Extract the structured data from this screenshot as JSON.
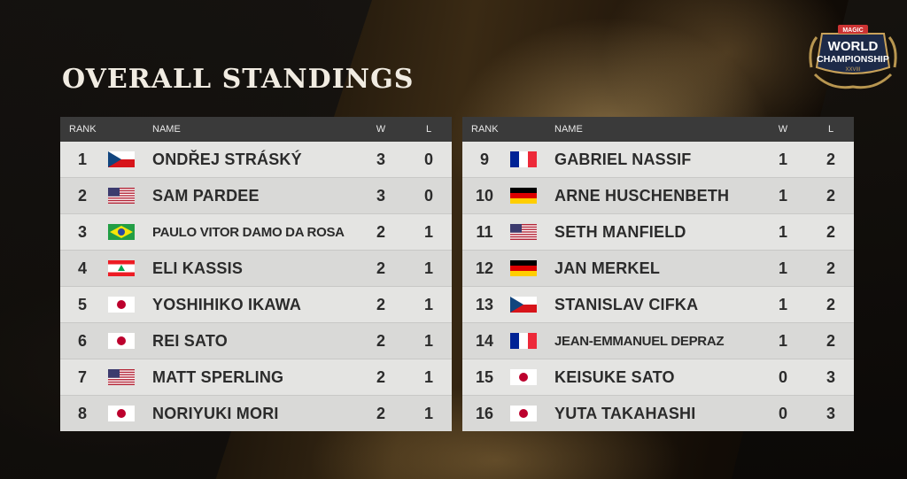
{
  "page": {
    "title": "OVERALL STANDINGS",
    "logo": {
      "top_text": "MAGIC",
      "main_text": "WORLD CHAMPIONSHIP",
      "sub_text": "XXVIII",
      "icon": "world-championship-logo"
    }
  },
  "columns": {
    "rank": "RANK",
    "name": "NAME",
    "wins": "W",
    "losses": "L"
  },
  "colors": {
    "header_bg": "#3a3a3a",
    "row_bg": "#e0e0de",
    "title": "#f1ece2",
    "accent_gold": "#c9a25a"
  },
  "left": [
    {
      "rank": "1",
      "country": "CZ",
      "name": "ONDŘEJ STRÁSKÝ",
      "w": "3",
      "l": "0"
    },
    {
      "rank": "2",
      "country": "US",
      "name": "SAM PARDEE",
      "w": "3",
      "l": "0"
    },
    {
      "rank": "3",
      "country": "BR",
      "name": "PAULO VITOR DAMO DA ROSA",
      "w": "2",
      "l": "1"
    },
    {
      "rank": "4",
      "country": "LB",
      "name": "ELI KASSIS",
      "w": "2",
      "l": "1"
    },
    {
      "rank": "5",
      "country": "JP",
      "name": "YOSHIHIKO IKAWA",
      "w": "2",
      "l": "1"
    },
    {
      "rank": "6",
      "country": "JP",
      "name": "REI SATO",
      "w": "2",
      "l": "1"
    },
    {
      "rank": "7",
      "country": "US",
      "name": "MATT SPERLING",
      "w": "2",
      "l": "1"
    },
    {
      "rank": "8",
      "country": "JP",
      "name": "NORIYUKI MORI",
      "w": "2",
      "l": "1"
    }
  ],
  "right": [
    {
      "rank": "9",
      "country": "FR",
      "name": "GABRIEL NASSIF",
      "w": "1",
      "l": "2"
    },
    {
      "rank": "10",
      "country": "DE",
      "name": "ARNE HUSCHENBETH",
      "w": "1",
      "l": "2"
    },
    {
      "rank": "11",
      "country": "US",
      "name": "SETH MANFIELD",
      "w": "1",
      "l": "2"
    },
    {
      "rank": "12",
      "country": "DE",
      "name": "JAN MERKEL",
      "w": "1",
      "l": "2"
    },
    {
      "rank": "13",
      "country": "CZ",
      "name": "STANISLAV CIFKA",
      "w": "1",
      "l": "2"
    },
    {
      "rank": "14",
      "country": "FR",
      "name": "JEAN-EMMANUEL DEPRAZ",
      "w": "1",
      "l": "2"
    },
    {
      "rank": "15",
      "country": "JP",
      "name": "KEISUKE SATO",
      "w": "0",
      "l": "3"
    },
    {
      "rank": "16",
      "country": "JP",
      "name": "YUTA TAKAHASHI",
      "w": "0",
      "l": "3"
    }
  ]
}
